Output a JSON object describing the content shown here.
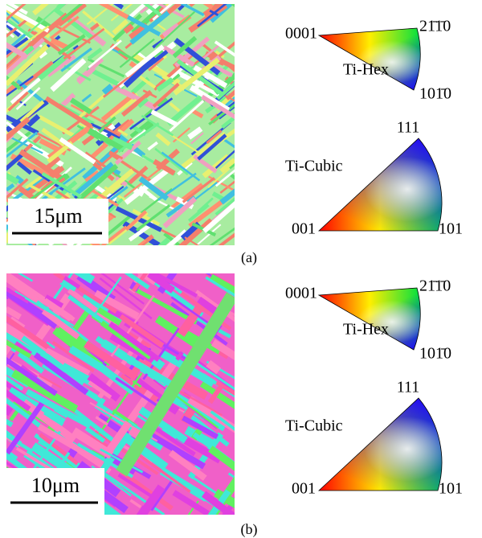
{
  "figure": {
    "panels": [
      {
        "label": "(a)",
        "scale_bar": "15μm",
        "hex_key": {
          "title": "Ti-Hex",
          "corner_left": "0001",
          "corner_top": "21̄1̄0",
          "corner_bottom": "101̄0"
        },
        "cubic_key": {
          "title": "Ti-Cubic",
          "corner_top": "111",
          "corner_left": "001",
          "corner_right": "101"
        }
      },
      {
        "label": "(b)",
        "scale_bar": "10μm",
        "hex_key": {
          "title": "Ti-Hex",
          "corner_left": "0001",
          "corner_top": "21̄1̄0",
          "corner_bottom": "101̄0"
        },
        "cubic_key": {
          "title": "Ti-Cubic",
          "corner_top": "111",
          "corner_left": "001",
          "corner_right": "101"
        }
      }
    ]
  }
}
